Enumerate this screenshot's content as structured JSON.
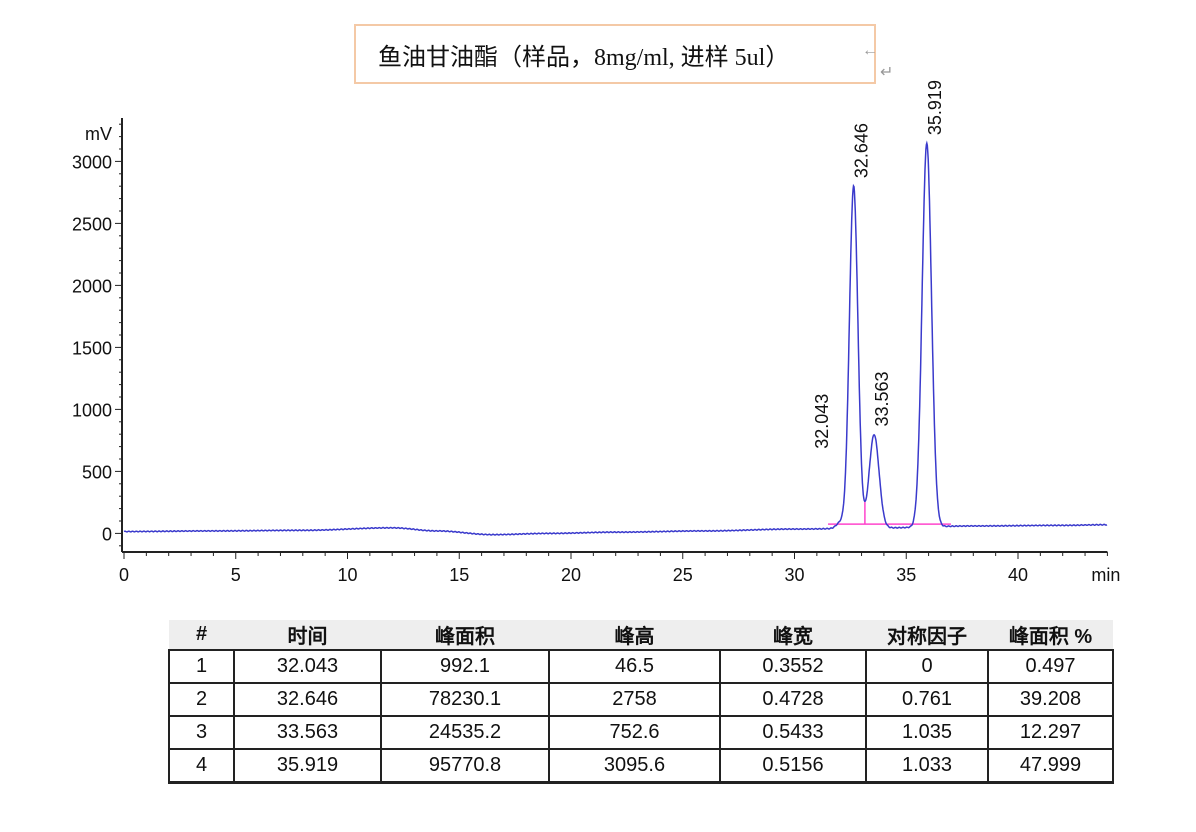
{
  "title": "鱼油甘油酯（样品，8mg/ml, 进样  5ul）",
  "chart_data": {
    "type": "line",
    "title": "鱼油甘油酯（样品，8mg/ml, 进样  5ul）",
    "xlabel": "min",
    "ylabel": "mV",
    "xlim": [
      0,
      44
    ],
    "ylim": [
      -150,
      3350
    ],
    "xticks": [
      0,
      5,
      10,
      15,
      20,
      25,
      30,
      35,
      40
    ],
    "yticks": [
      0,
      500,
      1000,
      1500,
      2000,
      2500,
      3000
    ],
    "grid": false,
    "line_color": "#3a3acc",
    "integration_color": "#ff44cc",
    "baseline": {
      "x": [
        0,
        4,
        8,
        12,
        14,
        16.5,
        19,
        22,
        26,
        30,
        34,
        38,
        42,
        44
      ],
      "y": [
        15,
        20,
        25,
        45,
        20,
        -10,
        0,
        10,
        20,
        35,
        45,
        60,
        65,
        70
      ]
    },
    "peaks": [
      {
        "label": "32.043",
        "time": 32.043,
        "height": 46.5
      },
      {
        "label": "32.646",
        "time": 32.646,
        "height": 2758
      },
      {
        "label": "33.563",
        "time": 33.563,
        "height": 752.6
      },
      {
        "label": "35.919",
        "time": 35.919,
        "height": 3095.6
      }
    ]
  },
  "table": {
    "headers": [
      "#",
      "时间",
      "峰面积",
      "峰高",
      "峰宽",
      "对称因子",
      "峰面积 %"
    ],
    "rows": [
      [
        "1",
        "32.043",
        "992.1",
        "46.5",
        "0.3552",
        "0",
        "0.497"
      ],
      [
        "2",
        "32.646",
        "78230.1",
        "2758",
        "0.4728",
        "0.761",
        "39.208"
      ],
      [
        "3",
        "33.563",
        "24535.2",
        "752.6",
        "0.5433",
        "1.035",
        "12.297"
      ],
      [
        "4",
        "35.919",
        "95770.8",
        "3095.6",
        "0.5156",
        "1.033",
        "47.999"
      ]
    ]
  }
}
